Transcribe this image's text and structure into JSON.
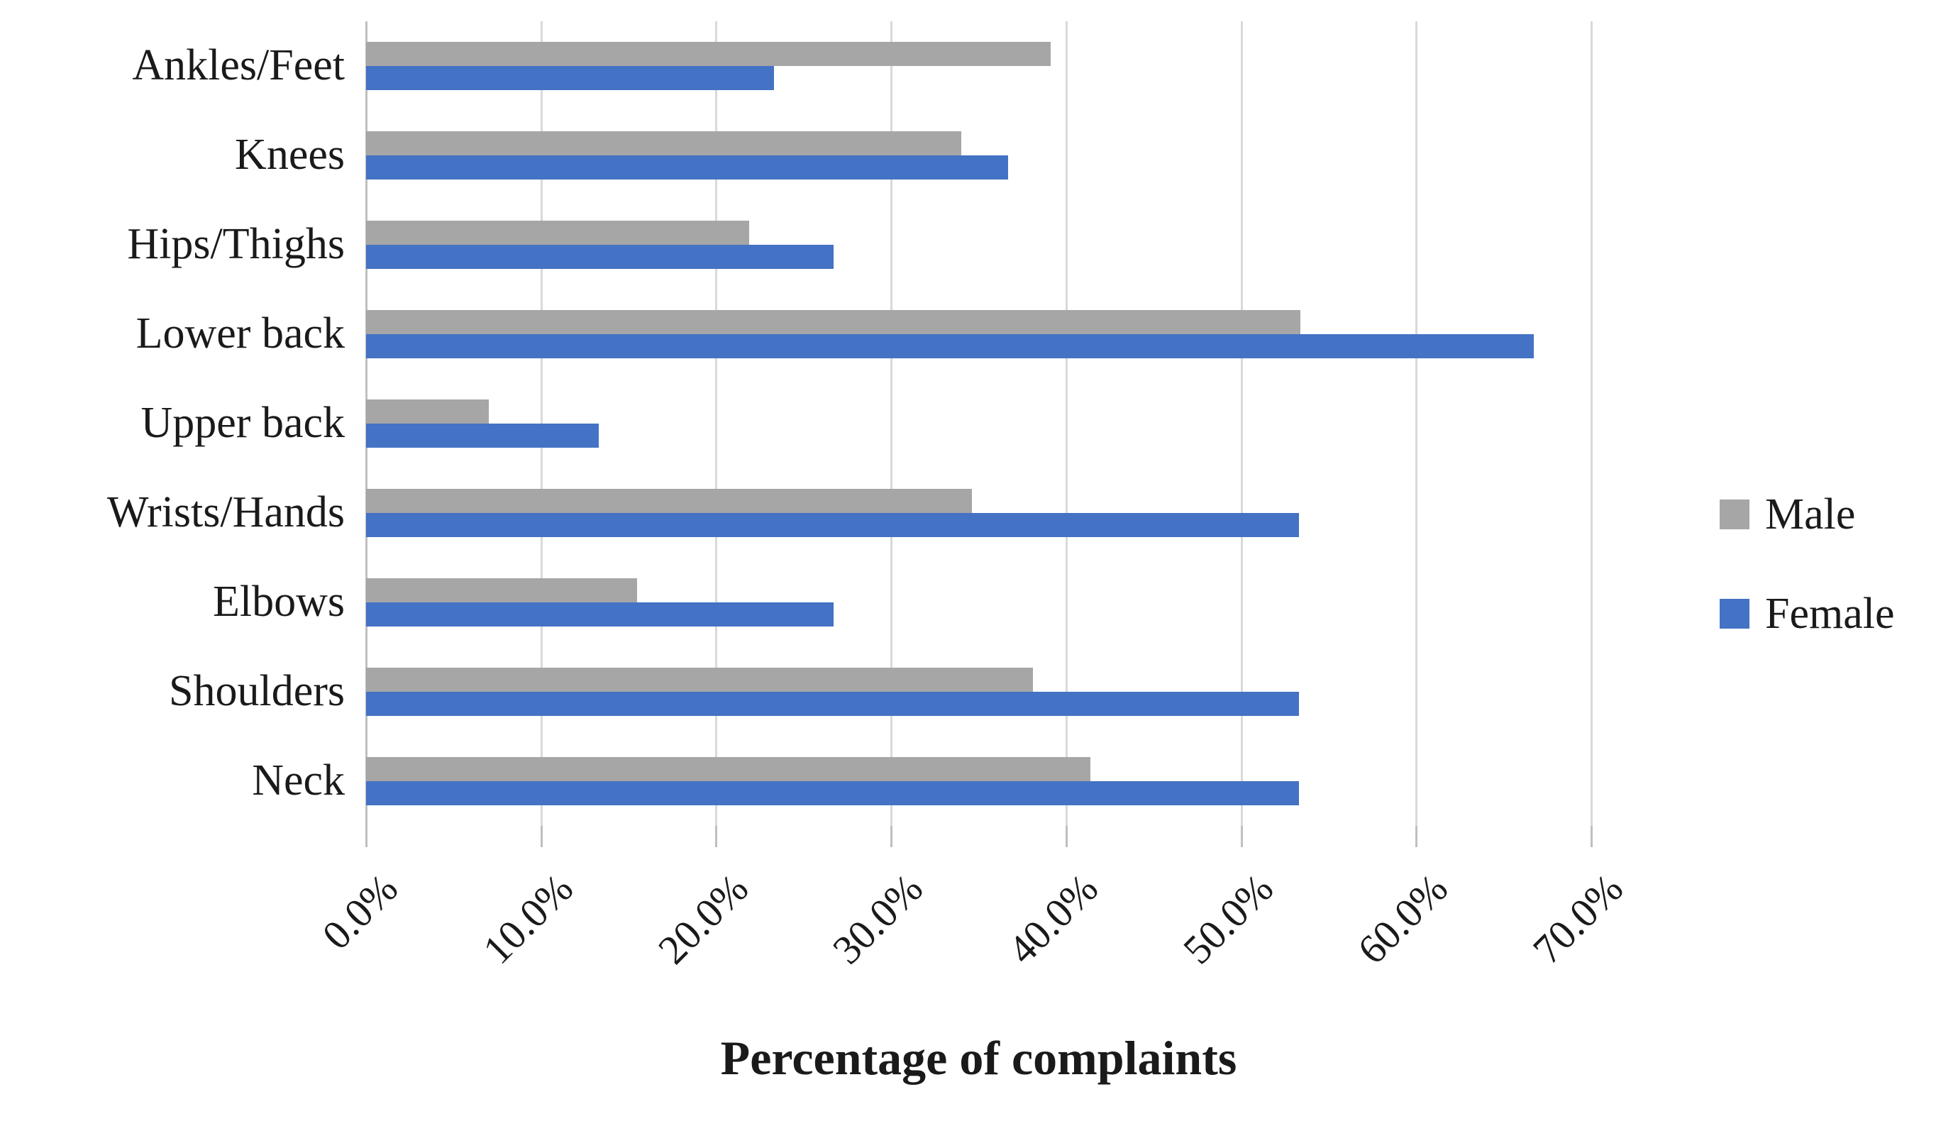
{
  "chart_data": {
    "type": "bar",
    "orientation": "horizontal",
    "title": "",
    "xlabel": "Percentage of complaints",
    "ylabel": "",
    "categories_top_to_bottom": [
      "Ankles/Feet",
      "Knees",
      "Hips/Thighs",
      "Lower back",
      "Upper back",
      "Wrists/Hands",
      "Elbows",
      "Shoulders",
      "Neck"
    ],
    "series": [
      {
        "name": "Male",
        "color": "#A6A6A6",
        "values": [
          39.1,
          34.0,
          21.9,
          53.4,
          7.0,
          34.6,
          15.5,
          38.1,
          41.4
        ]
      },
      {
        "name": "Female",
        "color": "#4472C4",
        "values": [
          23.3,
          36.7,
          26.7,
          66.7,
          13.3,
          53.3,
          26.7,
          53.3,
          53.3
        ]
      }
    ],
    "x_axis": {
      "min": 0,
      "max": 70,
      "tick_step": 10,
      "tick_labels": [
        "0.0%",
        "10.0%",
        "20.0%",
        "30.0%",
        "40.0%",
        "50.0%",
        "60.0%",
        "70.0%"
      ],
      "tick_label_rotation_deg": 45
    },
    "grid": {
      "vertical_gridlines": true,
      "gridline_color": "#D9D9D9",
      "axis_line_color": "#BFBFBF"
    },
    "legend": {
      "position": "right",
      "entries": [
        "Male",
        "Female"
      ]
    }
  }
}
